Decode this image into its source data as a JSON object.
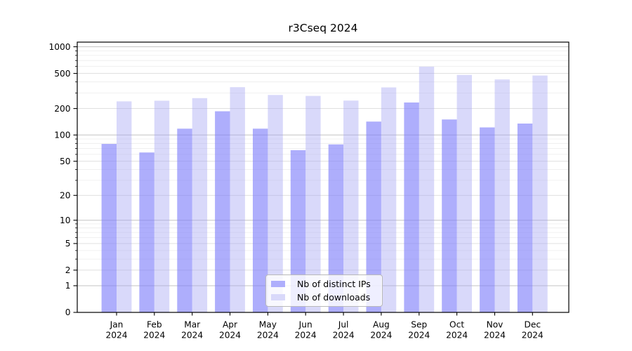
{
  "chart_data": {
    "type": "bar",
    "title": "r3Cseq 2024",
    "categories": [
      "Jan 2024",
      "Feb 2024",
      "Mar 2024",
      "Apr 2024",
      "May 2024",
      "Jun 2024",
      "Jul 2024",
      "Aug 2024",
      "Sep 2024",
      "Oct 2024",
      "Nov 2024",
      "Dec 2024"
    ],
    "series": [
      {
        "name": "Nb of distinct IPs",
        "color": "#7f7ffa",
        "alpha": 0.63,
        "values": [
          79,
          63,
          118,
          186,
          118,
          67,
          78,
          142,
          234,
          150,
          122,
          135
        ]
      },
      {
        "name": "Nb of downloads",
        "color": "#a5a5f2",
        "alpha": 0.42,
        "values": [
          241,
          245,
          262,
          349,
          285,
          278,
          246,
          347,
          597,
          481,
          427,
          473
        ]
      }
    ],
    "y_scale": "log10(1+y)",
    "ylim": [
      0,
      1130
    ],
    "y_tick_labels": [
      "1000",
      "500",
      "200",
      "100",
      "50",
      "20",
      "10",
      "5",
      "2",
      "1",
      "0"
    ],
    "y_minor_ticks": [
      3,
      4,
      6,
      7,
      8,
      9,
      30,
      40,
      60,
      70,
      80,
      90,
      300,
      400,
      600,
      700,
      800,
      900
    ],
    "grid": true,
    "legend_position": "lower center",
    "xlabel": "",
    "ylabel": ""
  },
  "style_colors": {
    "grid_major": "#c3c3c3",
    "grid_medium": "#dbdbdb",
    "grid_minor": "#ececec",
    "spine": "#000000",
    "text": "#000000"
  }
}
